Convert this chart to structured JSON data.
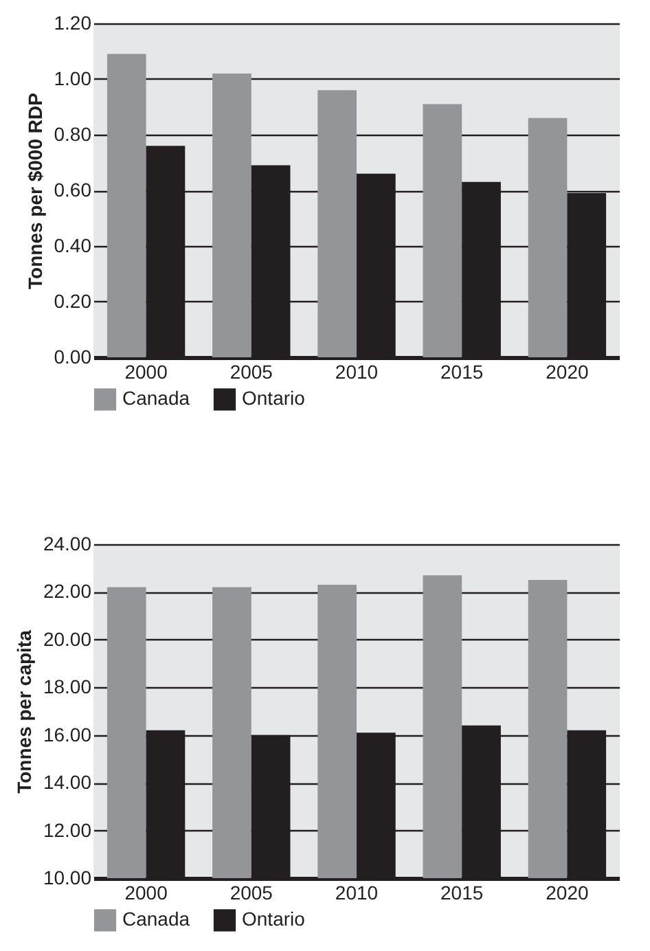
{
  "chart_data": [
    {
      "type": "bar",
      "ylabel": "Tonnes per $000 RDP",
      "categories": [
        "2000",
        "2005",
        "2010",
        "2015",
        "2020"
      ],
      "series": [
        {
          "name": "Canada",
          "color": "#939598",
          "values": [
            1.09,
            1.02,
            0.96,
            0.91,
            0.86
          ]
        },
        {
          "name": "Ontario",
          "color": "#231f20",
          "values": [
            0.76,
            0.69,
            0.66,
            0.63,
            0.59
          ]
        }
      ],
      "ylim": [
        0,
        1.2
      ],
      "yticks": [
        {
          "value": 0,
          "label": "0.00"
        },
        {
          "value": 0.2,
          "label": "0.20"
        },
        {
          "value": 0.4,
          "label": "0.40"
        },
        {
          "value": 0.6,
          "label": "0.60"
        },
        {
          "value": 0.8,
          "label": "0.80"
        },
        {
          "value": 1,
          "label": "1.00"
        },
        {
          "value": 1.2,
          "label": "1.20"
        }
      ],
      "grid": "y",
      "legend": "bottom"
    },
    {
      "type": "bar",
      "ylabel": "Tonnes per capita",
      "categories": [
        "2000",
        "2005",
        "2010",
        "2015",
        "2020"
      ],
      "series": [
        {
          "name": "Canada",
          "color": "#939598",
          "values": [
            22.2,
            22.2,
            22.3,
            22.7,
            22.5
          ]
        },
        {
          "name": "Ontario",
          "color": "#231f20",
          "values": [
            16.2,
            16.0,
            16.1,
            16.4,
            16.2
          ]
        }
      ],
      "ylim": [
        10,
        24
      ],
      "yticks": [
        {
          "value": 10,
          "label": "10.00"
        },
        {
          "value": 12,
          "label": "12.00"
        },
        {
          "value": 14,
          "label": "14.00"
        },
        {
          "value": 16,
          "label": "16.00"
        },
        {
          "value": 18,
          "label": "18.00"
        },
        {
          "value": 20,
          "label": "20.00"
        },
        {
          "value": 22,
          "label": "22.00"
        },
        {
          "value": 24,
          "label": "24.00"
        }
      ],
      "grid": "y",
      "legend": "bottom"
    }
  ]
}
